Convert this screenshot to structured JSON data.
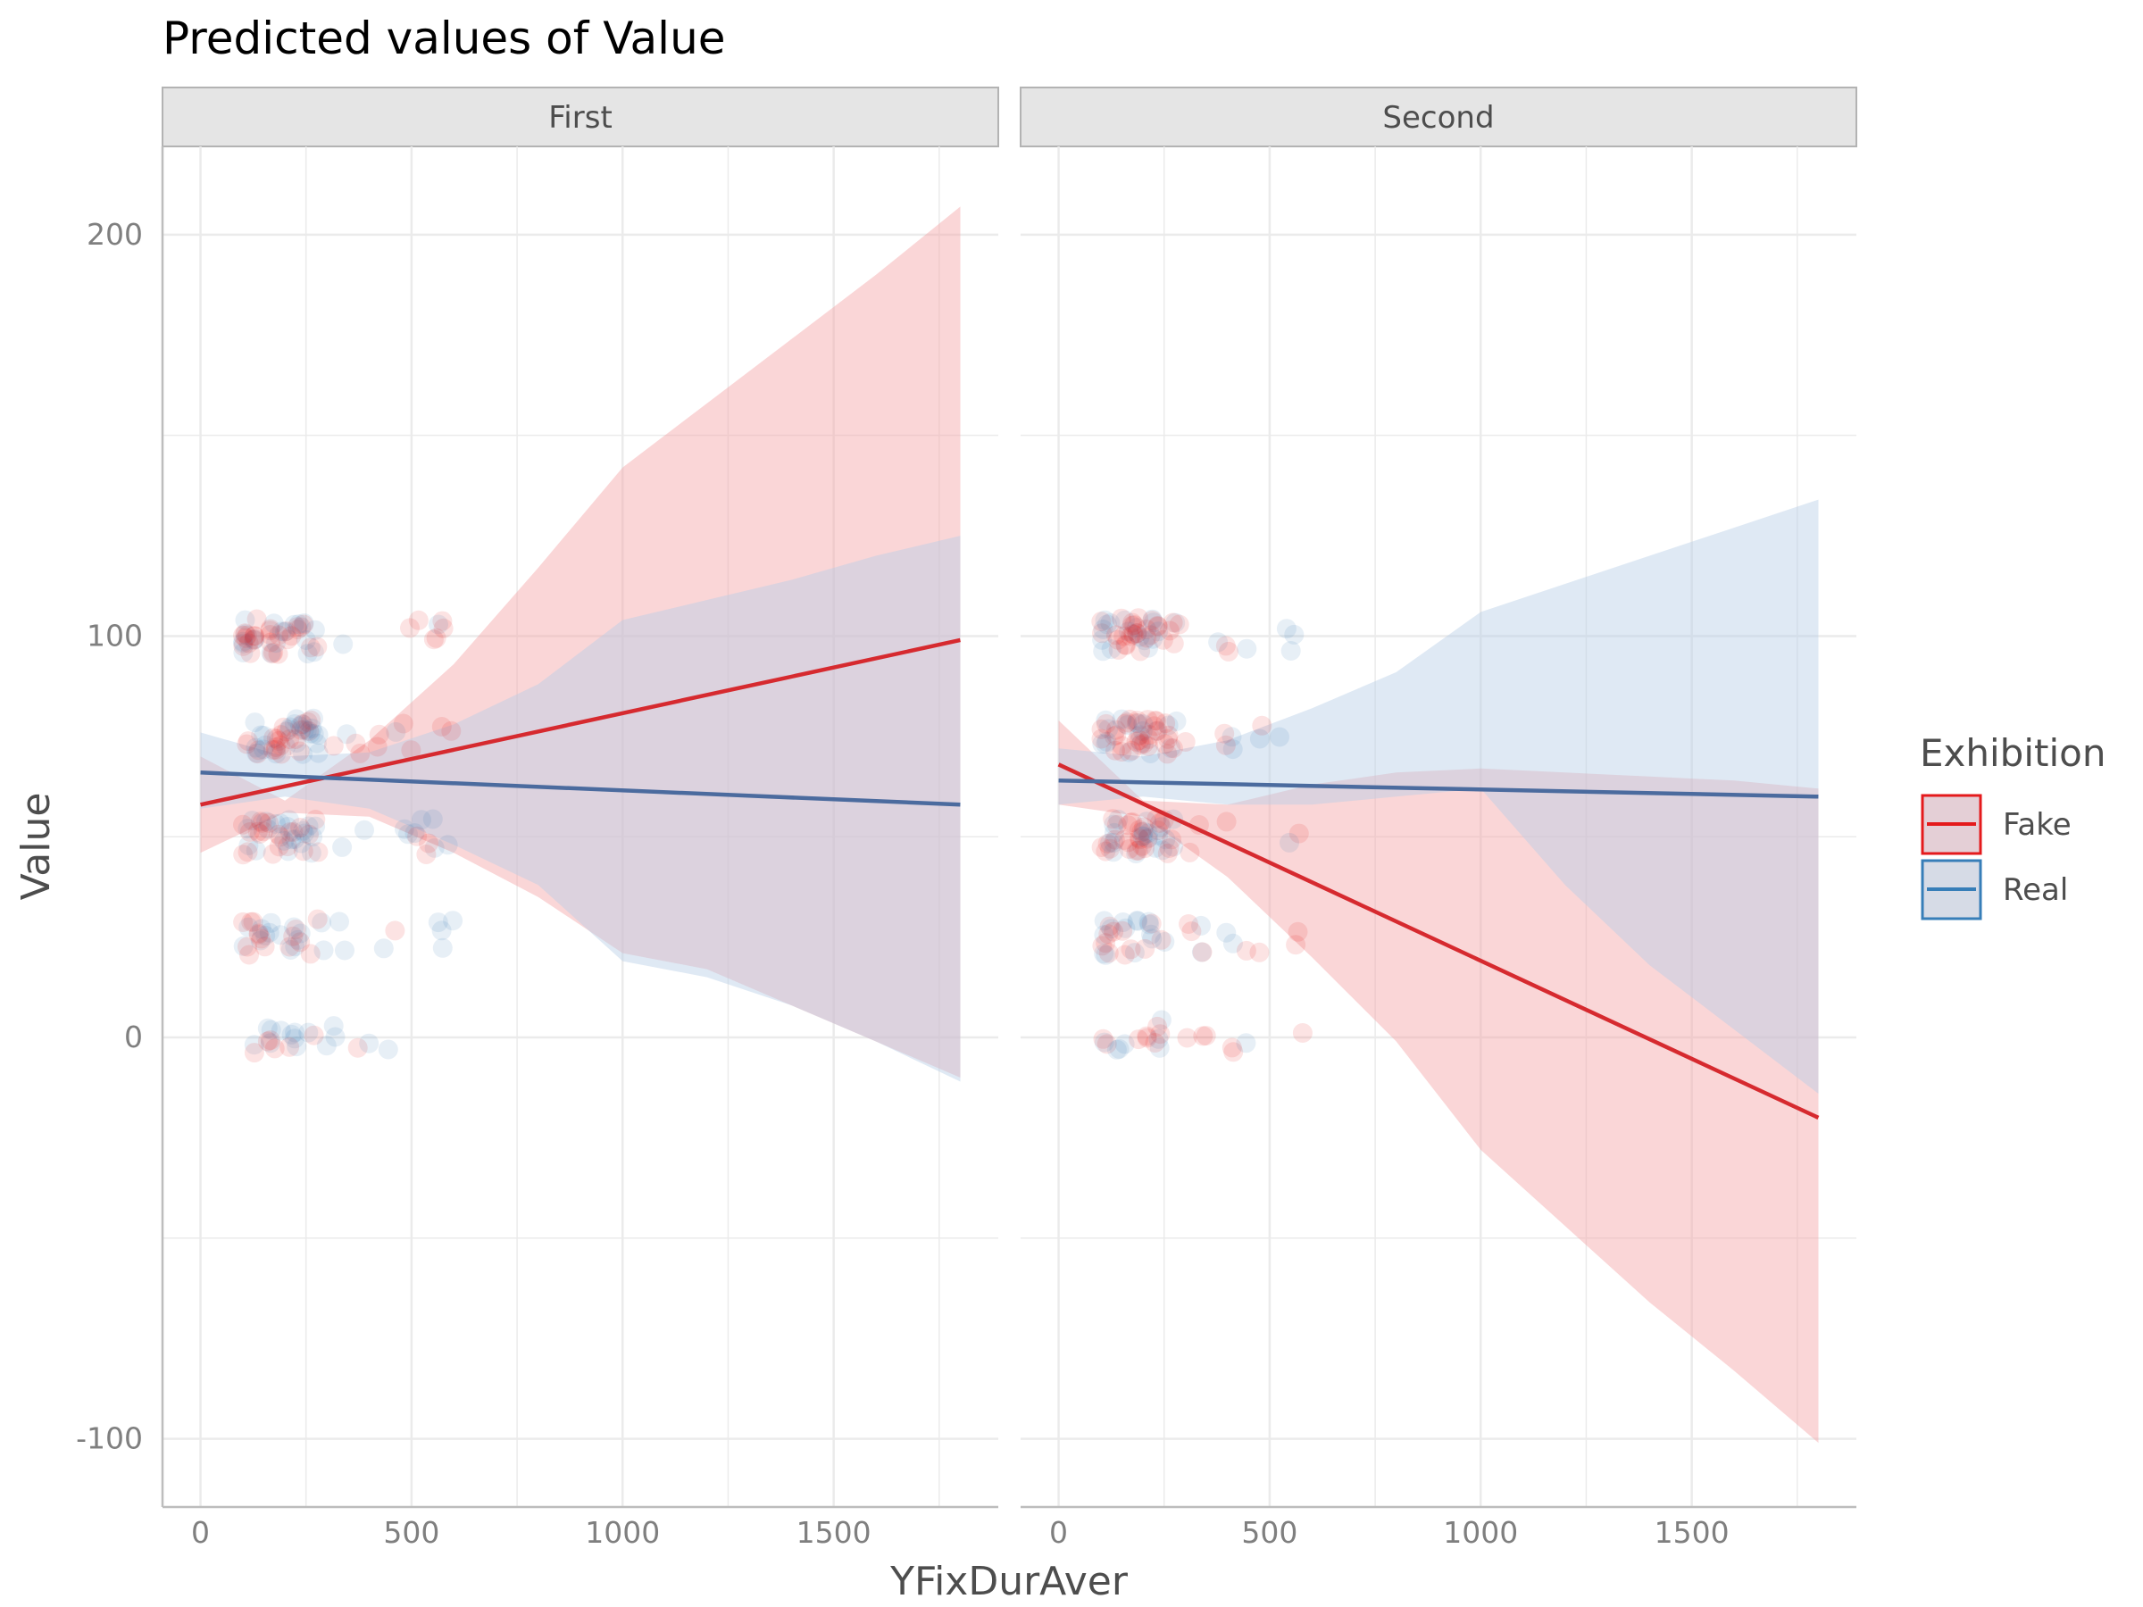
{
  "chart_data": {
    "type": "line",
    "title": "Predicted values of Value",
    "xlabel": "YFixDurAver",
    "ylabel": "Value",
    "xlim": [
      -90,
      1890
    ],
    "ylim": [
      -117,
      222
    ],
    "x_ticks": [
      0,
      500,
      1000,
      1500
    ],
    "y_ticks": [
      -100,
      0,
      100,
      200
    ],
    "grid": true,
    "legend": {
      "title": "Exhibition",
      "placement": "right"
    },
    "colors": {
      "Fake": "#e41a1c",
      "Real": "#377eb8"
    },
    "panels": [
      {
        "name": "First",
        "series": [
          {
            "name": "Fake",
            "x": [
              0,
              1800
            ],
            "y": [
              58,
              99
            ],
            "ci_x": [
              0,
              200,
              400,
              600,
              800,
              1000,
              1200,
              1400,
              1600,
              1800
            ],
            "ci_lower": [
              46,
              56,
              55,
              46,
              35,
              21,
              17,
              8,
              -1,
              -10
            ],
            "ci_upper": [
              70,
              59,
              74,
              93,
              117,
              142,
              158,
              174,
              190,
              207
            ]
          },
          {
            "name": "Real",
            "x": [
              0,
              1800
            ],
            "y": [
              66,
              58
            ],
            "ci_x": [
              0,
              200,
              400,
              600,
              800,
              1000,
              1200,
              1400,
              1600,
              1800
            ],
            "ci_lower": [
              57,
              60,
              57,
              48,
              38,
              19,
              15,
              8,
              -1,
              -11
            ],
            "ci_upper": [
              76,
              70,
              71,
              78,
              88,
              104,
              109,
              114,
              120,
              125
            ]
          }
        ]
      },
      {
        "name": "Second",
        "series": [
          {
            "name": "Fake",
            "x": [
              0,
              1800
            ],
            "y": [
              68,
              -20
            ],
            "ci_x": [
              0,
              200,
              400,
              600,
              800,
              1000,
              1200,
              1400,
              1600,
              1800
            ],
            "ci_lower": [
              58,
              55,
              40,
              20,
              -1,
              -28,
              -47,
              -66,
              -83,
              -101
            ],
            "ci_upper": [
              79,
              59,
              58,
              63,
              66,
              67,
              66,
              65,
              64,
              62
            ]
          },
          {
            "name": "Real",
            "x": [
              0,
              1800
            ],
            "y": [
              64,
              60
            ],
            "ci_x": [
              0,
              200,
              400,
              600,
              800,
              1000,
              1200,
              1400,
              1600,
              1800
            ],
            "ci_lower": [
              58,
              60,
              58,
              58,
              60,
              62,
              38,
              18,
              2,
              -14
            ],
            "ci_upper": [
              72,
              70,
              74,
              82,
              91,
              106,
              113,
              120,
              127,
              134
            ]
          }
        ]
      }
    ]
  }
}
